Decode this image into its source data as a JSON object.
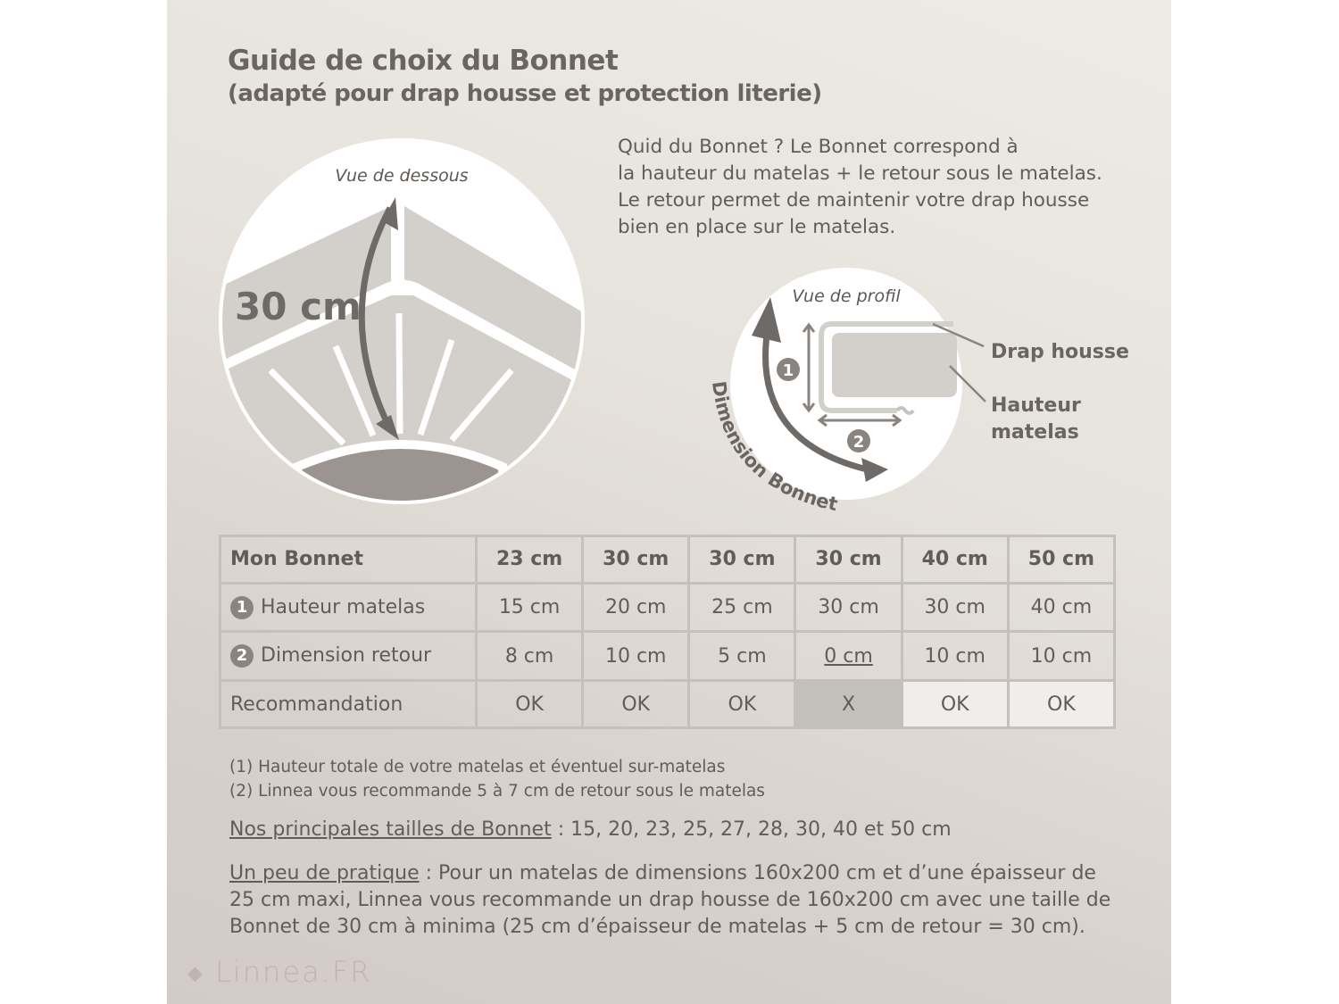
{
  "header": {
    "title": "Guide de choix du Bonnet",
    "subtitle": "(adapté pour drap housse et protection literie)"
  },
  "intro": [
    "Quid du Bonnet ? Le Bonnet correspond à",
    "la hauteur du matelas + le retour sous le matelas.",
    "Le retour permet de maintenir votre drap housse",
    "bien en place sur le matelas."
  ],
  "diagram_bottom": {
    "caption": "Vue de dessous",
    "measure": "30 cm"
  },
  "diagram_profile": {
    "caption": "Vue de profil",
    "arc_label": "Dimension Bonnet",
    "marker1": "1",
    "marker2": "2",
    "label_sheet": "Drap housse",
    "label_height_1": "Hauteur",
    "label_height_2": "matelas"
  },
  "table": {
    "header": [
      "Mon Bonnet",
      "23 cm",
      "30 cm",
      "30 cm",
      "30 cm",
      "40 cm",
      "50 cm"
    ],
    "rows": [
      {
        "num": "1",
        "label": "Hauteur matelas",
        "values": [
          "15 cm",
          "20 cm",
          "25 cm",
          "30 cm",
          "30 cm",
          "40 cm"
        ]
      },
      {
        "num": "2",
        "label": "Dimension retour",
        "values": [
          "8 cm",
          "10 cm",
          "5 cm",
          "0 cm",
          "10 cm",
          "10 cm"
        ]
      },
      {
        "num": "",
        "label": "Recommandation",
        "values": [
          "OK",
          "OK",
          "OK",
          "X",
          "OK",
          "OK"
        ]
      }
    ]
  },
  "notes": [
    "(1) Hauteur totale de votre matelas et éventuel sur-matelas",
    "(2) Linnea vous recommande 5 à 7 cm de retour sous le matelas"
  ],
  "sizes": {
    "label": "Nos principales tailles de Bonnet",
    "text": " : 15, 20, 23, 25, 27, 28, 30, 40 et 50 cm"
  },
  "practice": {
    "label": "Un peu de pratique",
    "text": " : Pour un matelas de dimensions 160x200 cm et d’une épaisseur de 25 cm maxi, Linnea vous recommande un drap housse de 160x200 cm avec une taille de Bonnet de 30 cm à minima (25 cm d’épaisseur de matelas + 5 cm de retour = 30 cm)."
  },
  "logo": "Linnea.FR",
  "colors": {
    "text": "#5e5854",
    "bad_cell": "#c3bfbb",
    "good_cell": "#f0eeea",
    "arrow": "#6e6a67"
  }
}
